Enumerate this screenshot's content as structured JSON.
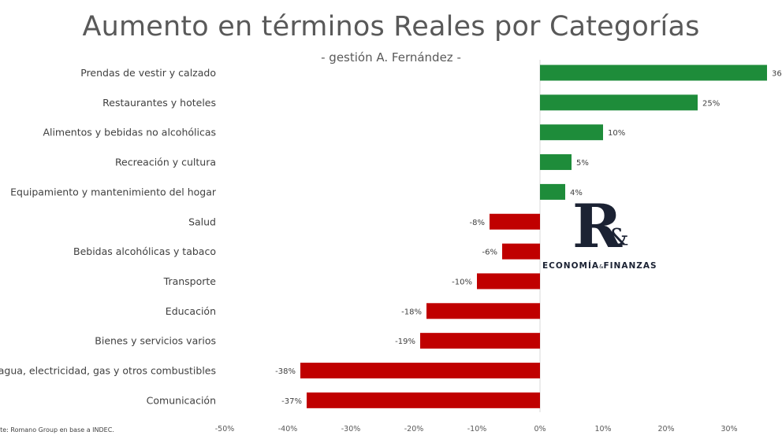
{
  "title": "Aumento en términos Reales por Categorías",
  "subtitle": "- gestión A. Fernández -",
  "source": "nte: Romano Group en base a INDEC.",
  "logo": {
    "mark": "R",
    "amp": "&",
    "text_left": "ECONOMÍA",
    "text_amp": "&",
    "text_right": "FINANZAS"
  },
  "colors": {
    "positive": "#1e8c3a",
    "negative": "#c00000",
    "text": "#404040",
    "title": "#595959",
    "logo": "#1b2233"
  },
  "chart_data": {
    "type": "bar",
    "orientation": "horizontal",
    "categories": [
      "Prendas de vestir y calzado",
      "Restaurantes y hoteles",
      "Alimentos y bebidas no alcohólicas",
      "Recreación y cultura",
      "Equipamiento y mantenimiento del hogar",
      "Salud",
      "Bebidas alcohólicas y tabaco",
      "Transporte",
      "Educación",
      "Bienes y servicios varios",
      "enda, agua, electricidad, gas y otros combustibles",
      "Comunicación"
    ],
    "values": [
      36,
      25,
      10,
      5,
      4,
      -8,
      -6,
      -10,
      -18,
      -19,
      -38,
      -37
    ],
    "value_labels": [
      "36",
      "25%",
      "10%",
      "5%",
      "4%",
      "-8%",
      "-6%",
      "-10%",
      "-18%",
      "-19%",
      "-38%",
      "-37%"
    ],
    "xlim": [
      -50,
      37
    ],
    "xticks": [
      -50,
      -40,
      -30,
      -20,
      -10,
      0,
      10,
      20,
      30
    ],
    "xtick_labels": [
      "-50%",
      "-40%",
      "-30%",
      "-20%",
      "-10%",
      "0%",
      "10%",
      "20%",
      "30%"
    ],
    "grid": false,
    "legend": false
  }
}
